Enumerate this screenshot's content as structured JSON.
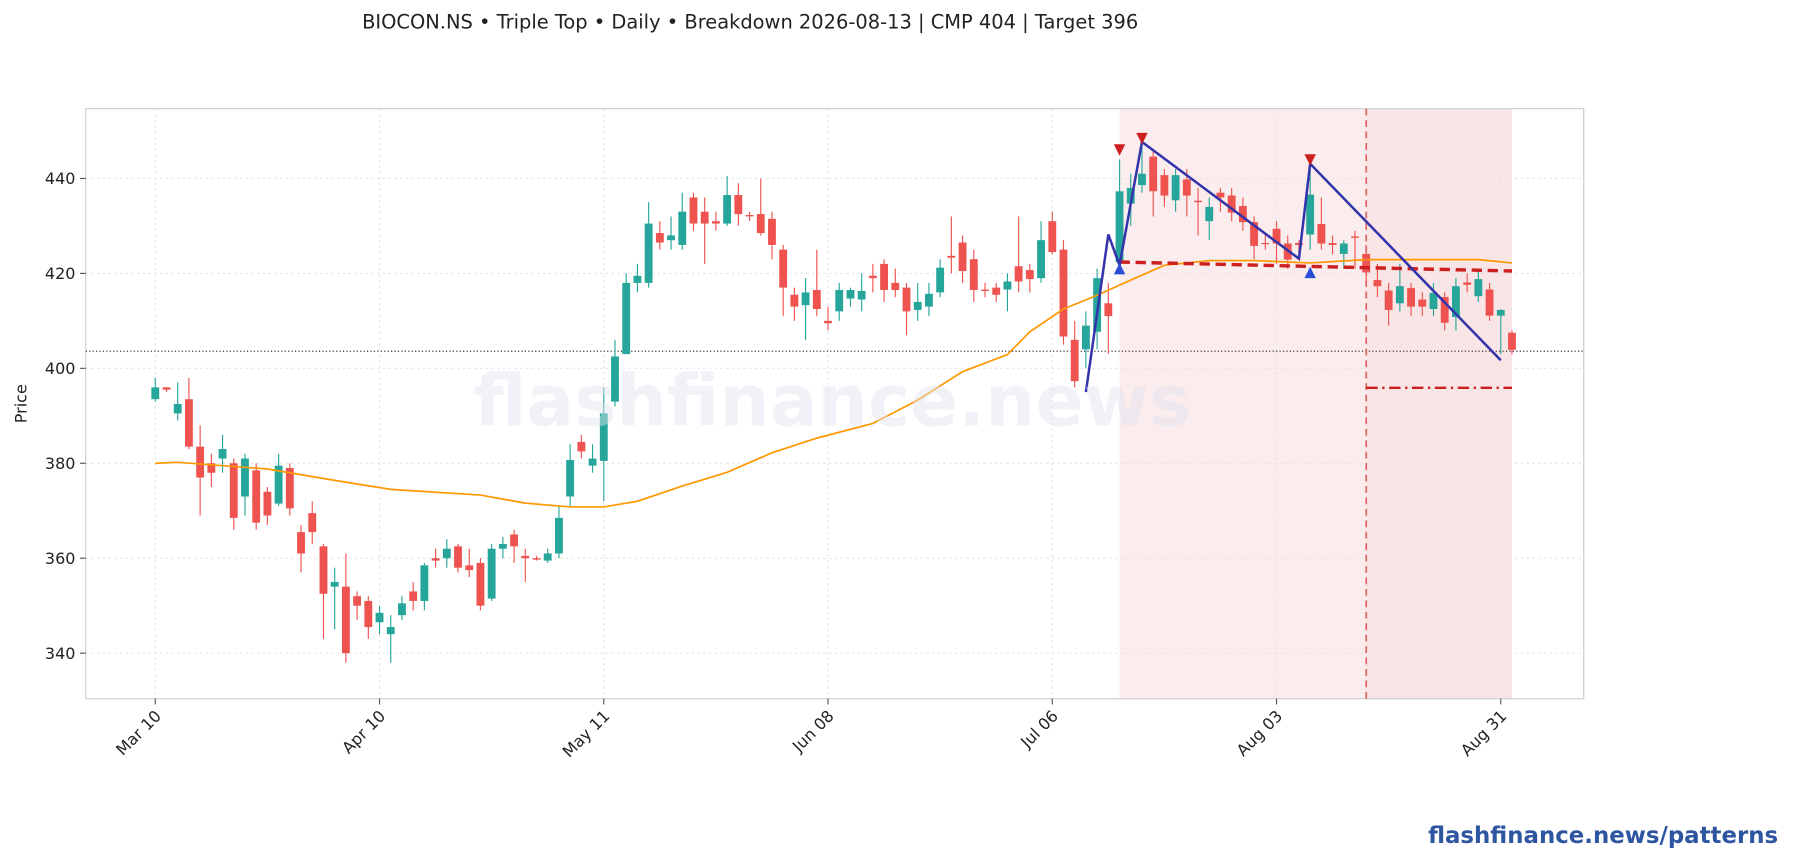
{
  "chart_data": {
    "type": "candlestick",
    "title": "BIOCON.NS  •  Triple Top  •  Daily  •  Breakdown 2026-08-13  |  CMP 404  |  Target 396",
    "ylabel": "Price",
    "categories": [
      "Mar 10",
      null,
      null,
      null,
      null,
      null,
      null,
      null,
      null,
      null,
      null,
      null,
      null,
      null,
      null,
      null,
      null,
      null,
      null,
      null,
      "Apr 10",
      null,
      null,
      null,
      null,
      null,
      null,
      null,
      null,
      null,
      null,
      null,
      null,
      null,
      null,
      null,
      null,
      null,
      null,
      null,
      "May 11",
      null,
      null,
      null,
      null,
      null,
      null,
      null,
      null,
      null,
      null,
      null,
      null,
      null,
      null,
      null,
      null,
      null,
      null,
      null,
      "Jun 08",
      null,
      null,
      null,
      null,
      null,
      null,
      null,
      null,
      null,
      null,
      null,
      null,
      null,
      null,
      null,
      null,
      null,
      null,
      null,
      "Jul 06",
      null,
      null,
      null,
      null,
      null,
      null,
      null,
      null,
      null,
      null,
      null,
      null,
      null,
      null,
      null,
      null,
      null,
      null,
      null,
      "Aug 03",
      null,
      null,
      null,
      null,
      null,
      null,
      null,
      null,
      null,
      null,
      null,
      null,
      null,
      null,
      null,
      null,
      null,
      null,
      null,
      "Aug 31",
      null
    ],
    "xlim": [
      -6.2,
      127.4
    ],
    "ylim": [
      330.4,
      454.7
    ],
    "yticks": [
      340,
      360,
      380,
      400,
      420,
      440
    ],
    "grid": true,
    "up_color": "#26a69a",
    "down_color": "#ef5350",
    "open": [
      393.5,
      396,
      390.5,
      393.5,
      383.5,
      380,
      381,
      380,
      373,
      378.5,
      374,
      371.5,
      379,
      365.5,
      369.5,
      362.5,
      354,
      354,
      352,
      351,
      346.5,
      344,
      348,
      353,
      351,
      360,
      360,
      362.5,
      358.5,
      359,
      351.5,
      362,
      365,
      360.5,
      360,
      359.5,
      361,
      373,
      384.5,
      379.5,
      380.5,
      393,
      403,
      418,
      418,
      428.5,
      427,
      426,
      436,
      433,
      431,
      430.5,
      436.5,
      432.3,
      432.5,
      431.5,
      425,
      415.5,
      413.3,
      416.5,
      410,
      412,
      414.7,
      414.5,
      419.5,
      422,
      418,
      417,
      412.3,
      413,
      416,
      423.7,
      426.5,
      423,
      416.6,
      417,
      416.6,
      421.5,
      420.7,
      419,
      431,
      425,
      406,
      404,
      407.7,
      413.7,
      422.4,
      434.7,
      438.6,
      444.6,
      440.7,
      435.4,
      439.8,
      435.3,
      431,
      437,
      436.4,
      434.2,
      430.8,
      426.4,
      429.4,
      426.3,
      426.4,
      428.2,
      430.4,
      426.4,
      424.1,
      427.8,
      424.1,
      418.6,
      416.4,
      413.7,
      416.9,
      414.5,
      412.5,
      415,
      410.8,
      418.1,
      415.2,
      416.6,
      411.1,
      407.5
    ],
    "high": [
      398,
      396,
      397,
      398,
      388,
      382,
      386,
      381,
      382,
      380,
      375,
      382,
      380,
      367,
      372,
      363,
      358,
      361,
      353,
      352,
      350,
      348,
      352,
      355,
      359,
      362,
      364,
      363,
      362,
      360,
      363,
      364.5,
      366,
      362,
      360.5,
      362,
      371,
      384,
      386,
      384,
      396,
      406,
      420,
      422,
      435,
      431,
      432,
      437,
      437,
      436,
      433,
      440.5,
      439,
      433,
      440,
      433,
      426,
      417,
      419,
      425,
      413,
      418,
      417,
      420,
      422,
      423,
      421,
      418,
      418,
      418,
      423,
      432,
      428,
      425,
      418,
      418,
      420,
      432,
      422,
      431,
      433,
      427,
      410,
      412,
      421,
      418,
      444,
      441,
      447,
      446,
      442,
      442,
      442,
      438,
      436,
      438,
      438,
      436,
      432,
      428,
      431,
      428,
      427,
      443,
      436,
      428,
      427,
      429,
      426,
      422,
      418,
      422,
      418,
      416,
      418,
      416,
      419,
      420,
      421,
      418,
      412.5,
      408
    ],
    "low": [
      393,
      395,
      389,
      383,
      369,
      375,
      378,
      366,
      369,
      366,
      367,
      371,
      369,
      357,
      363,
      343,
      345,
      338,
      347,
      343,
      344,
      338,
      347,
      349,
      349,
      358,
      358,
      357,
      356,
      349,
      351,
      360,
      359,
      355,
      359.5,
      359,
      360,
      371,
      381,
      378,
      372,
      392,
      403,
      416,
      417,
      425,
      425,
      425,
      429,
      422,
      429,
      430,
      430,
      431,
      428,
      423,
      411,
      410,
      406,
      411,
      408,
      410,
      413,
      412,
      416,
      414,
      415,
      407,
      410,
      411,
      415,
      420,
      418,
      414,
      415,
      414,
      412,
      416,
      416,
      418,
      424,
      405,
      396,
      400,
      404,
      403,
      421,
      430,
      437,
      432,
      434,
      433,
      432,
      428,
      427,
      433,
      431,
      429,
      423,
      425,
      422,
      421,
      423,
      425,
      425,
      424,
      421,
      421,
      418,
      415,
      409,
      412,
      411,
      411,
      411,
      408,
      408,
      416,
      414,
      410,
      403,
      403
    ],
    "close": [
      396,
      395.5,
      392.5,
      383.5,
      377,
      378,
      383,
      368.5,
      381,
      367.5,
      369,
      379.5,
      370.5,
      361,
      365.5,
      352.5,
      355,
      340,
      350,
      345.5,
      348.5,
      345.5,
      350.5,
      351,
      358.5,
      359.5,
      362,
      358,
      357.5,
      350,
      362,
      363,
      362.5,
      360,
      359.7,
      361,
      368.5,
      380.7,
      382.5,
      381,
      390.5,
      402.5,
      418,
      419.5,
      430.5,
      426.5,
      428,
      433,
      430.5,
      430.5,
      430.5,
      436.5,
      432.5,
      432,
      428.5,
      426,
      417,
      413,
      416,
      412.5,
      409.5,
      416.5,
      416.5,
      416.3,
      419,
      416.5,
      416.5,
      412,
      414,
      415.7,
      421.2,
      423.3,
      420.5,
      416.5,
      416.3,
      415.5,
      418.3,
      418.3,
      418.8,
      427,
      424.5,
      406.7,
      397.3,
      409,
      419,
      411,
      437.3,
      438,
      441,
      437.3,
      436.4,
      440.7,
      436.4,
      435,
      434,
      436,
      432.8,
      430.8,
      425.8,
      426.2,
      426.3,
      422.9,
      426,
      436.6,
      426.3,
      426,
      426.3,
      427.5,
      420.2,
      417.3,
      412.3,
      417.3,
      413,
      413,
      415.9,
      409.6,
      417.3,
      417.6,
      418.8,
      411.1,
      412.3,
      403.9
    ],
    "sma": {
      "color": "#ff9800",
      "x": [
        0,
        2,
        10,
        16,
        21,
        29,
        33,
        37,
        40,
        43,
        47,
        51,
        55,
        59,
        64,
        68,
        72,
        76,
        78,
        81,
        84,
        87,
        90,
        94,
        98,
        103,
        108,
        113,
        118,
        121
      ],
      "values": [
        380.0,
        380.2,
        378.8,
        376.4,
        374.5,
        373.3,
        371.6,
        370.8,
        370.8,
        372.0,
        375.2,
        378.1,
        382.2,
        385.3,
        388.4,
        393.3,
        399.3,
        402.9,
        407.7,
        412.5,
        415.4,
        418.6,
        421.7,
        422.7,
        422.7,
        422.2,
        422.9,
        422.9,
        422.9,
        422.2
      ]
    },
    "cmp_level": {
      "value": 403.6,
      "color": "#333333"
    },
    "shaded": [
      {
        "x": [
          86,
          121
        ],
        "color": "#f7dede"
      },
      {
        "x": [
          108,
          121
        ],
        "color": "#f7dede"
      }
    ],
    "breakdown": {
      "x": 108,
      "color": "#e06666"
    },
    "neckline": {
      "x": [
        86,
        121
      ],
      "values": [
        422.4,
        420.5
      ],
      "color": "#cc1f1f"
    },
    "target": {
      "x": [
        108,
        121
      ],
      "value": 395.9,
      "color": "#cc1f1f"
    },
    "zigzag": {
      "x": [
        83,
        85,
        86,
        88,
        102,
        103,
        120
      ],
      "values": [
        395,
        428.2,
        421.7,
        447.7,
        423.1,
        443.1,
        401.7
      ],
      "color": "#3333aa"
    },
    "peaks": {
      "x": [
        86,
        88,
        103
      ],
      "values": [
        446.0,
        448.4,
        443.9
      ],
      "color": "#cc1f1f"
    },
    "troughs": {
      "x": [
        86,
        103
      ],
      "values": [
        421,
        420.2
      ],
      "color": "#2a4fd6"
    }
  },
  "watermark": "flashfinance.news",
  "footer": "flashfinance.news/patterns"
}
